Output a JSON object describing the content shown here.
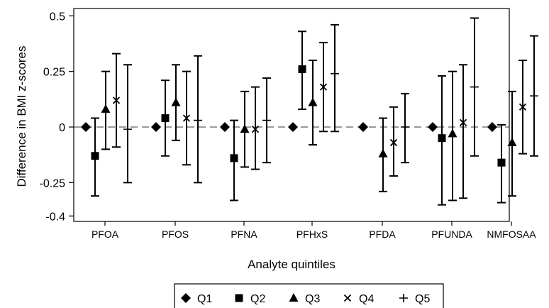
{
  "chart_data": {
    "type": "scatter",
    "xlabel": "Analyte quintiles",
    "ylabel": "Difference in BMI z-scores",
    "categories": [
      "PFOA",
      "PFOS",
      "PFNA",
      "PFHxS",
      "PFDA",
      "PFUNDA",
      "NMFOSAA"
    ],
    "ylim": [
      -0.45,
      0.52
    ],
    "yticks": [
      {
        "value": 0.5,
        "label": "0.5"
      },
      {
        "value": 0.25,
        "label": "0.25"
      },
      {
        "value": 0,
        "label": "0"
      },
      {
        "value": -0.25,
        "label": "-0.25"
      },
      {
        "value": -0.4,
        "label": "-0.4"
      }
    ],
    "reference_line": 0,
    "grid": false,
    "legend_position": "bottom",
    "series": [
      {
        "name": "Q1",
        "marker": "diamond",
        "values": [
          0,
          0,
          0,
          0,
          0,
          0,
          0
        ],
        "lower": [
          null,
          null,
          null,
          null,
          null,
          null,
          null
        ],
        "upper": [
          null,
          null,
          null,
          null,
          null,
          null,
          null
        ]
      },
      {
        "name": "Q2",
        "marker": "square",
        "values": [
          -0.13,
          0.04,
          -0.14,
          0.26,
          null,
          -0.05,
          -0.16
        ],
        "lower": [
          -0.31,
          -0.13,
          -0.33,
          0.08,
          null,
          -0.35,
          -0.34
        ],
        "upper": [
          0.04,
          0.21,
          0.03,
          0.43,
          null,
          0.23,
          0.01
        ]
      },
      {
        "name": "Q3",
        "marker": "triangle",
        "values": [
          0.08,
          0.11,
          -0.01,
          0.11,
          -0.12,
          -0.03,
          -0.07
        ],
        "lower": [
          -0.1,
          -0.06,
          -0.18,
          -0.08,
          -0.29,
          -0.33,
          -0.31
        ],
        "upper": [
          0.25,
          0.28,
          0.16,
          0.3,
          0.04,
          0.25,
          0.16
        ]
      },
      {
        "name": "Q4",
        "marker": "x",
        "values": [
          0.12,
          0.04,
          -0.01,
          0.18,
          -0.07,
          0.02,
          0.09
        ],
        "lower": [
          -0.09,
          -0.17,
          -0.19,
          -0.02,
          -0.22,
          -0.32,
          -0.12
        ],
        "upper": [
          0.33,
          0.25,
          0.18,
          0.38,
          0.09,
          0.28,
          0.3
        ]
      },
      {
        "name": "Q5",
        "marker": "plus",
        "values": [
          -0.01,
          0.03,
          0.03,
          0.24,
          0.0,
          0.18,
          0.14
        ],
        "lower": [
          -0.25,
          -0.25,
          -0.16,
          -0.02,
          -0.16,
          -0.13,
          -0.13
        ],
        "upper": [
          0.28,
          0.32,
          0.22,
          0.46,
          0.15,
          0.49,
          0.41
        ]
      }
    ]
  }
}
